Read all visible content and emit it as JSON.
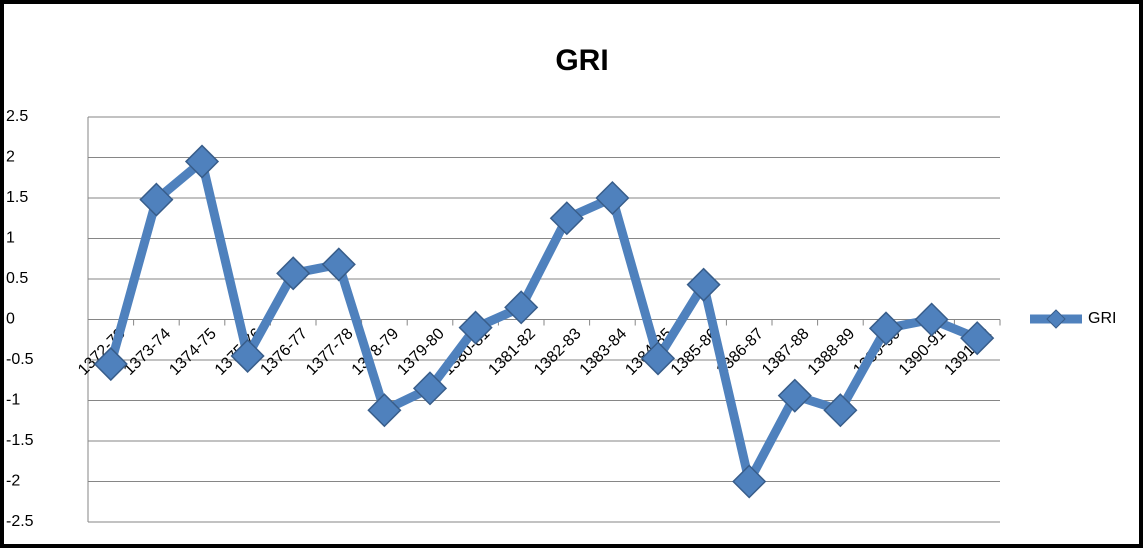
{
  "chart_data": {
    "type": "line",
    "title": "GRI",
    "categories": [
      "1372-73",
      "1373-74",
      "1374-75",
      "1375-76",
      "1376-77",
      "1377-78",
      "1378-79",
      "1379-80",
      "1380-81",
      "1381-82",
      "1382-83",
      "1383-84",
      "1384-85",
      "1385-86",
      "1386-87",
      "1387-88",
      "1388-89",
      "1389-90",
      "1390-91",
      "1391-92"
    ],
    "series": [
      {
        "name": "GRI",
        "color": "#4f81bd",
        "values": [
          -0.55,
          1.48,
          1.95,
          -0.45,
          0.57,
          0.68,
          -1.12,
          -0.85,
          -0.1,
          0.15,
          1.25,
          1.5,
          -0.48,
          0.43,
          -2.0,
          -0.94,
          -1.12,
          -0.11,
          0.0,
          -0.23
        ]
      }
    ],
    "ylim": [
      -2.5,
      2.5
    ],
    "yticks": [
      -2.5,
      -2,
      -1.5,
      -1,
      -0.5,
      0,
      0.5,
      1,
      1.5,
      2,
      2.5
    ],
    "grid": true,
    "legend": "right"
  }
}
